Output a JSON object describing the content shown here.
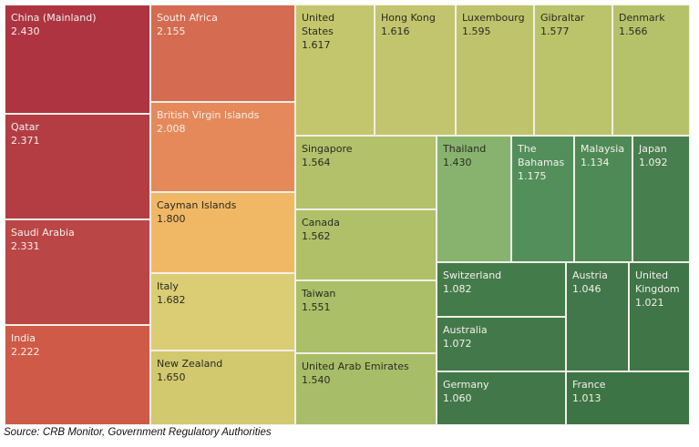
{
  "chart_data": {
    "type": "treemap",
    "title": "",
    "items": [
      {
        "label": "China (Mainland)",
        "value": "2.430",
        "color": "#ad3440"
      },
      {
        "label": "Qatar",
        "value": "2.371",
        "color": "#b33d42"
      },
      {
        "label": "Saudi Arabia",
        "value": "2.331",
        "color": "#bb4646"
      },
      {
        "label": "India",
        "value": "2.222",
        "color": "#cf5a48"
      },
      {
        "label": "South Africa",
        "value": "2.155",
        "color": "#d56b50"
      },
      {
        "label": "British Virgin Islands",
        "value": "2.008",
        "color": "#e5895a"
      },
      {
        "label": "Cayman Islands",
        "value": "1.800",
        "color": "#f0b865"
      },
      {
        "label": "Italy",
        "value": "1.682",
        "color": "#dbcd74"
      },
      {
        "label": "New Zealand",
        "value": "1.650",
        "color": "#d2c86e"
      },
      {
        "label": "United States",
        "value": "1.617",
        "color": "#c4c66e"
      },
      {
        "label": "Hong Kong",
        "value": "1.616",
        "color": "#c2c56d"
      },
      {
        "label": "Luxembourg",
        "value": "1.595",
        "color": "#bfc46c"
      },
      {
        "label": "Gibraltar",
        "value": "1.577",
        "color": "#bbc36b"
      },
      {
        "label": "Denmark",
        "value": "1.566",
        "color": "#b6c26a"
      },
      {
        "label": "Singapore",
        "value": "1.564",
        "color": "#b2c16a"
      },
      {
        "label": "Canada",
        "value": "1.562",
        "color": "#afc069"
      },
      {
        "label": "Taiwan",
        "value": "1.551",
        "color": "#abbe68"
      },
      {
        "label": "United Arab Emirates",
        "value": "1.540",
        "color": "#a8bd67"
      },
      {
        "label": "Thailand",
        "value": "1.430",
        "color": "#87b36f"
      },
      {
        "label": "The Bahamas",
        "value": "1.175",
        "color": "#538f5b"
      },
      {
        "label": "Malaysia",
        "value": "1.134",
        "color": "#4e8a55"
      },
      {
        "label": "Japan",
        "value": "1.092",
        "color": "#477f4e"
      },
      {
        "label": "Switzerland",
        "value": "1.082",
        "color": "#447b4b"
      },
      {
        "label": "Australia",
        "value": "1.072",
        "color": "#43794a"
      },
      {
        "label": "Germany",
        "value": "1.060",
        "color": "#427849"
      },
      {
        "label": "Austria",
        "value": "1.046",
        "color": "#41774a"
      },
      {
        "label": "United Kingdom",
        "value": "1.021",
        "color": "#3f7547"
      },
      {
        "label": "France",
        "value": "1.013",
        "color": "#3d7445"
      }
    ]
  },
  "source": "Source: CRB Monitor, Government Regulatory Authorities"
}
